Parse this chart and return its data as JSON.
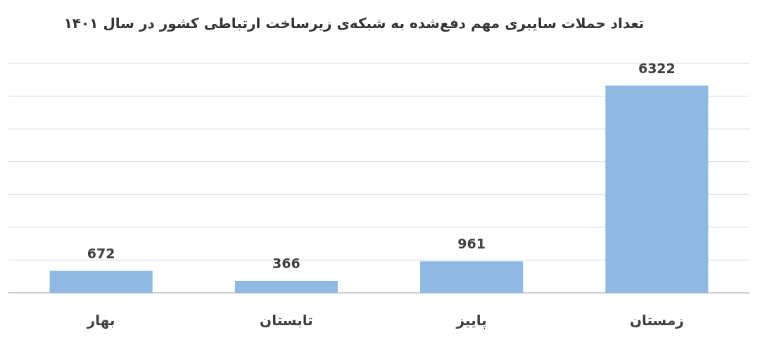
{
  "chart_data": {
    "type": "bar",
    "title": "تعداد حملات سایبری مهم دفع‌شده به شبکه‌ی زیرساخت ارتباطی کشور در سال ۱۴۰۱",
    "categories": [
      "بهار",
      "تابستان",
      "پاییز",
      "زمستان"
    ],
    "values": [
      672,
      366,
      961,
      6322
    ],
    "color": "#8db9e2",
    "ylim": [
      0,
      7000
    ],
    "yticks": [
      {
        "value": 0,
        "label": null
      },
      {
        "value": 1000,
        "label": null
      },
      {
        "value": 2000,
        "label": null
      },
      {
        "value": 3000,
        "label": null
      },
      {
        "value": 4000,
        "label": null
      },
      {
        "value": 5000,
        "label": null
      },
      {
        "value": 6000,
        "label": null
      },
      {
        "value": 7000,
        "label": null
      }
    ],
    "grid": "y",
    "tick_labels": "x",
    "data_labels": true
  }
}
